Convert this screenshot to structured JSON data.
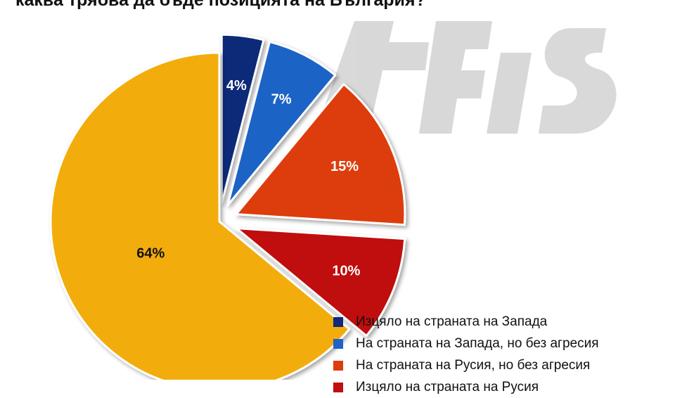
{
  "chart_data": {
    "type": "pie",
    "title": "каква трябва да бъде позицията на България?",
    "watermark": "AFIS",
    "slices": [
      {
        "label": "Изцяло на страната на Запада",
        "value": 4,
        "display": "4%",
        "color": "#0e2a78"
      },
      {
        "label": "На страната на Запада, но без агресия",
        "value": 7,
        "display": "7%",
        "color": "#1f63c6"
      },
      {
        "label": "На страната на Русия, но без агресия",
        "value": 15,
        "display": "15%",
        "color": "#dd3d0b"
      },
      {
        "label": "Изцяло на страната на Русия",
        "value": 10,
        "display": "10%",
        "color": "#c00f0f"
      },
      {
        "label": "",
        "value": 64,
        "display": "64%",
        "color": "#f2ad0f"
      }
    ],
    "legend": [
      {
        "label": "Изцяло на страната на Запада",
        "color": "#0e2a78"
      },
      {
        "label": "На страната на Запада, но без агресия",
        "color": "#1f63c6"
      },
      {
        "label": "На страната на Русия, но без агресия",
        "color": "#dd3d0b"
      },
      {
        "label": "Изцяло на страната на Русия",
        "color": "#c00f0f"
      }
    ],
    "legend_position": "bottom-right"
  }
}
